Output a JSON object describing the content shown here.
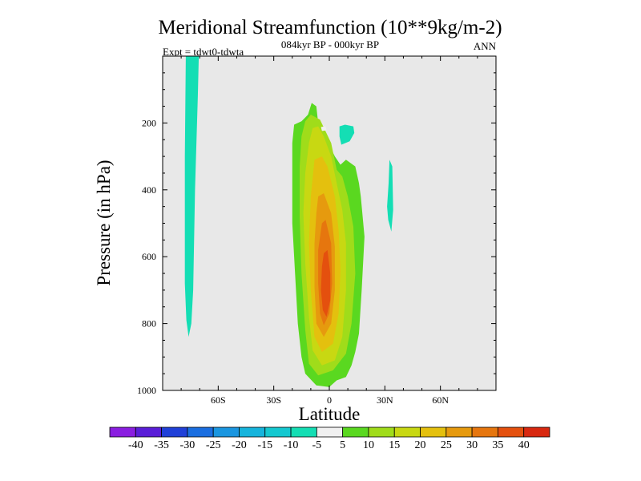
{
  "chart_data": {
    "type": "contour",
    "title": "Meridional Streamfunction (10**9kg/m-2)",
    "subtitle": "084kyr BP - 000kyr BP",
    "left_label": "Expt = tdwt0-tdwta",
    "right_label": "ANN",
    "xlabel": "Latitude",
    "ylabel": "Pressure (in hPa)",
    "xlim": [
      -90,
      90
    ],
    "ylim": [
      1000,
      0
    ],
    "x_ticks": [
      {
        "value": -60,
        "label": "60S"
      },
      {
        "value": -30,
        "label": "30S"
      },
      {
        "value": 0,
        "label": "0"
      },
      {
        "value": 30,
        "label": "30N"
      },
      {
        "value": 60,
        "label": "60N"
      }
    ],
    "y_ticks": [
      {
        "value": 200,
        "label": "200"
      },
      {
        "value": 400,
        "label": "400"
      },
      {
        "value": 600,
        "label": "600"
      },
      {
        "value": 800,
        "label": "800"
      },
      {
        "value": 1000,
        "label": "1000"
      }
    ],
    "background_color": "#e8e8e8",
    "colorbar": {
      "levels": [
        "-40",
        "-35",
        "-30",
        "-25",
        "-20",
        "-15",
        "-10",
        "-5",
        "5",
        "10",
        "15",
        "20",
        "25",
        "30",
        "35",
        "40"
      ],
      "colors": [
        "#8a1ee0",
        "#5a1ed8",
        "#2040d8",
        "#1a6ee0",
        "#1a96e0",
        "#16b4dc",
        "#14c8d0",
        "#14deb4",
        "#f0f0f0",
        "#5ad820",
        "#a0dc1a",
        "#c8d812",
        "#e4c00e",
        "#e69a0e",
        "#e6760e",
        "#e4500e",
        "#d82810"
      ]
    },
    "regions": [
      {
        "name": "sh-negative-band",
        "level": "-10 to -5",
        "color_index": 7,
        "outline": [
          [
            -77.5,
            0
          ],
          [
            -70.5,
            0
          ],
          [
            -71,
            120
          ],
          [
            -72.5,
            400
          ],
          [
            -73.5,
            700
          ],
          [
            -74.5,
            800
          ],
          [
            -76,
            840
          ],
          [
            -77.2,
            790
          ],
          [
            -78,
            680
          ],
          [
            -78,
            300
          ],
          [
            -77.5,
            0
          ]
        ]
      },
      {
        "name": "nh-negative-patch-upper",
        "level": "-10 to -5",
        "color_index": 7,
        "outline": [
          [
            5.5,
            210
          ],
          [
            8.5,
            205
          ],
          [
            13,
            210
          ],
          [
            13.5,
            230
          ],
          [
            11,
            255
          ],
          [
            6.5,
            265
          ],
          [
            5.5,
            240
          ],
          [
            5.5,
            210
          ]
        ]
      },
      {
        "name": "nh-negative-patch-mid",
        "level": "-10 to -5",
        "color_index": 7,
        "outline": [
          [
            32.5,
            310
          ],
          [
            34,
            330
          ],
          [
            34.5,
            460
          ],
          [
            33.5,
            525
          ],
          [
            31.8,
            490
          ],
          [
            31.2,
            450
          ],
          [
            32,
            380
          ],
          [
            32.5,
            310
          ]
        ]
      },
      {
        "name": "positive-5",
        "level": "5 to 10",
        "color_index": 9,
        "outline": [
          [
            -11.5,
            175
          ],
          [
            -9.5,
            140
          ],
          [
            -7,
            150
          ],
          [
            -6,
            200
          ],
          [
            -1,
            255
          ],
          [
            3,
            300
          ],
          [
            6,
            325
          ],
          [
            9,
            310
          ],
          [
            14,
            330
          ],
          [
            16,
            380
          ],
          [
            17,
            420
          ],
          [
            19,
            540
          ],
          [
            17.5,
            700
          ],
          [
            16,
            830
          ],
          [
            14,
            885
          ],
          [
            12,
            925
          ],
          [
            9,
            960
          ],
          [
            4,
            970
          ],
          [
            0,
            990
          ],
          [
            -7,
            985
          ],
          [
            -13,
            950
          ],
          [
            -15,
            900
          ],
          [
            -17,
            800
          ],
          [
            -20,
            500
          ],
          [
            -20,
            380
          ],
          [
            -20,
            260
          ],
          [
            -19,
            205
          ],
          [
            -15,
            195
          ],
          [
            -11.5,
            175
          ]
        ]
      },
      {
        "name": "positive-10",
        "level": "10 to 15",
        "color_index": 10,
        "outline": [
          [
            -13,
            195
          ],
          [
            -10,
            175
          ],
          [
            -5,
            190
          ],
          [
            1,
            260
          ],
          [
            4,
            340
          ],
          [
            7,
            360
          ],
          [
            10,
            420
          ],
          [
            13,
            510
          ],
          [
            14,
            650
          ],
          [
            12,
            800
          ],
          [
            9,
            890
          ],
          [
            2,
            940
          ],
          [
            -6,
            955
          ],
          [
            -11,
            920
          ],
          [
            -13,
            820
          ],
          [
            -15,
            650
          ],
          [
            -16,
            480
          ],
          [
            -16,
            330
          ],
          [
            -15,
            240
          ],
          [
            -13,
            195
          ]
        ]
      },
      {
        "name": "positive-15",
        "level": "15 to 20",
        "color_index": 11,
        "outline": [
          [
            -9,
            215
          ],
          [
            -6,
            210
          ],
          [
            -3,
            240
          ],
          [
            1,
            300
          ],
          [
            4,
            380
          ],
          [
            7,
            460
          ],
          [
            9,
            560
          ],
          [
            9,
            700
          ],
          [
            7,
            840
          ],
          [
            3,
            910
          ],
          [
            -4,
            925
          ],
          [
            -9,
            880
          ],
          [
            -11,
            780
          ],
          [
            -13,
            620
          ],
          [
            -14,
            470
          ],
          [
            -13,
            350
          ],
          [
            -11,
            260
          ],
          [
            -9,
            215
          ]
        ]
      },
      {
        "name": "positive-20",
        "level": "20 to 25",
        "color_index": 12,
        "outline": [
          [
            -8,
            310
          ],
          [
            -4,
            300
          ],
          [
            -1,
            330
          ],
          [
            3,
            420
          ],
          [
            5,
            520
          ],
          [
            6,
            640
          ],
          [
            5,
            770
          ],
          [
            2,
            860
          ],
          [
            -4,
            885
          ],
          [
            -8,
            840
          ],
          [
            -10,
            700
          ],
          [
            -11,
            560
          ],
          [
            -10,
            420
          ],
          [
            -8,
            310
          ]
        ]
      },
      {
        "name": "positive-25",
        "level": "25 to 30",
        "color_index": 13,
        "outline": [
          [
            -6,
            420
          ],
          [
            -3,
            410
          ],
          [
            1,
            470
          ],
          [
            3,
            570
          ],
          [
            3,
            700
          ],
          [
            1,
            800
          ],
          [
            -3,
            840
          ],
          [
            -7,
            800
          ],
          [
            -8,
            690
          ],
          [
            -8,
            560
          ],
          [
            -7,
            470
          ],
          [
            -6,
            420
          ]
        ]
      },
      {
        "name": "positive-30",
        "level": "30 to 35",
        "color_index": 14,
        "outline": [
          [
            -4,
            500
          ],
          [
            -2,
            490
          ],
          [
            1,
            560
          ],
          [
            1.5,
            680
          ],
          [
            0,
            770
          ],
          [
            -3,
            805
          ],
          [
            -5,
            770
          ],
          [
            -6,
            680
          ],
          [
            -6,
            580
          ],
          [
            -4,
            500
          ]
        ]
      },
      {
        "name": "positive-35",
        "level": "35 to 40",
        "color_index": 15,
        "outline": [
          [
            -3,
            590
          ],
          [
            -1,
            580
          ],
          [
            0.5,
            650
          ],
          [
            0.5,
            730
          ],
          [
            -1.5,
            780
          ],
          [
            -3.5,
            760
          ],
          [
            -4.5,
            700
          ],
          [
            -4,
            630
          ],
          [
            -3,
            590
          ]
        ]
      },
      {
        "name": "white-speck",
        "level": "-5 to 5",
        "color_index": 8,
        "outline": [
          [
            -4.5,
            212
          ],
          [
            -2,
            210
          ],
          [
            -1.5,
            222
          ],
          [
            -4,
            224
          ],
          [
            -4.5,
            212
          ]
        ]
      }
    ]
  }
}
